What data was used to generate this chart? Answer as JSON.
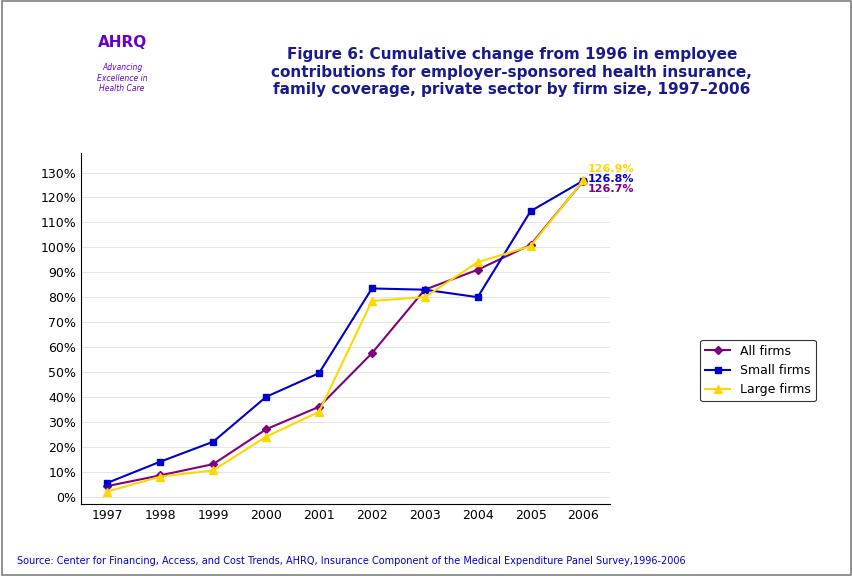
{
  "years": [
    1997,
    1998,
    1999,
    2000,
    2001,
    2002,
    2003,
    2004,
    2005,
    2006
  ],
  "all_firms": [
    4.2,
    8.5,
    13.0,
    27.0,
    36.0,
    57.5,
    83.0,
    91.0,
    101.0,
    126.7
  ],
  "small_firms": [
    5.5,
    14.0,
    22.0,
    40.0,
    49.5,
    83.5,
    83.0,
    80.0,
    114.5,
    126.8
  ],
  "large_firms": [
    2.0,
    8.0,
    10.5,
    24.0,
    34.0,
    78.5,
    80.0,
    94.0,
    100.5,
    126.9
  ],
  "all_color": "#800080",
  "small_color": "#0000cc",
  "large_color": "#ffd700",
  "title_line1": "Figure 6: Cumulative change from 1996 in employee",
  "title_line2": "contributions for employer-sponsored health insurance,",
  "title_line3": "family coverage, private sector by firm size, 1997–2006",
  "title_color": "#1a1a8c",
  "ylabel_ticks": [
    "0%",
    "10%",
    "20%",
    "30%",
    "40%",
    "50%",
    "60%",
    "70%",
    "80%",
    "90%",
    "100%",
    "110%",
    "120%",
    "130%"
  ],
  "ylabel_values": [
    0,
    10,
    20,
    30,
    40,
    50,
    60,
    70,
    80,
    90,
    100,
    110,
    120,
    130
  ],
  "source_text": "Source: Center for Financing, Access, and Cost Trends, AHRQ, Insurance Component of the Medical Expenditure Panel Survey,1996-2006",
  "end_label_large": "126.9%",
  "end_label_small": "126.8%",
  "end_label_all": "126.7%",
  "end_color_large": "#ffd700",
  "end_color_small": "#0000cc",
  "end_color_all": "#800080",
  "header_bar_color": "#1a1a8c",
  "legend_labels": [
    "All firms",
    "Small firms",
    "Large firms"
  ],
  "bg_color": "#ffffff",
  "outer_border_color": "#7f7f7f",
  "logo_bg_color": "#2196c4"
}
